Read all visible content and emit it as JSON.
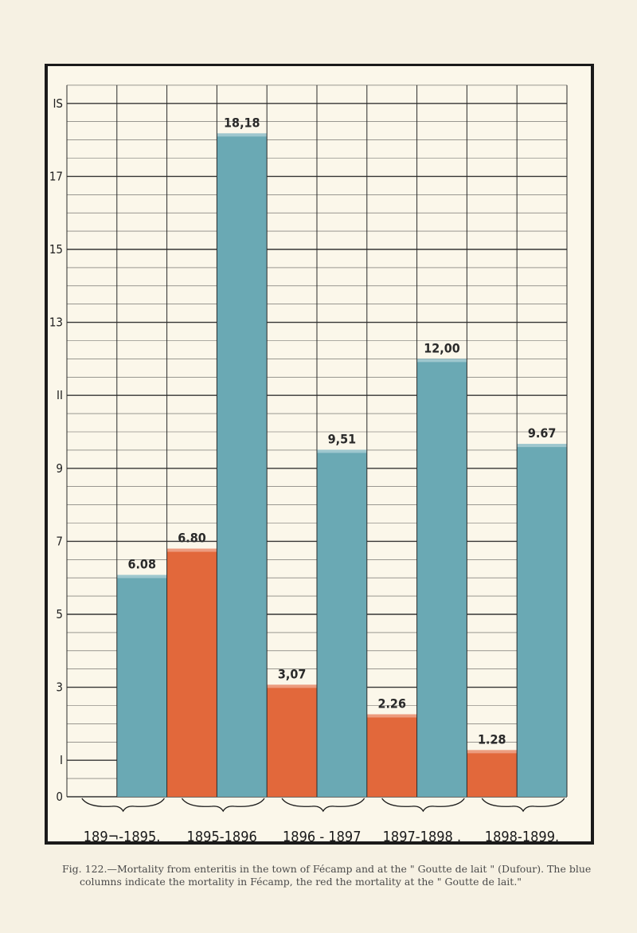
{
  "caption": {
    "line1": "Fig. 122.—Mortality from enteritis in the town of Fécamp and at the \" Goutte de lait \" (Dufour). The blue",
    "line2": "columns indicate the mortality in Fécamp, the red the mortality at the \" Goutte de lait.\""
  },
  "colors": {
    "fecamp": "#6aa9b4",
    "goutte_de_lait": "#e2683b",
    "grid": "#2b2b2b",
    "background": "#fbf7ea"
  },
  "chart_data": {
    "type": "bar",
    "title": "",
    "xlabel": "",
    "ylabel": "",
    "ylim": [
      0,
      19.5
    ],
    "ytick_labels": [
      "0",
      "I",
      "3",
      "5",
      "7",
      "9",
      "II",
      "13",
      "15",
      "17",
      "IS"
    ],
    "ytick_values": [
      0,
      1,
      3,
      5,
      7,
      9,
      11,
      13,
      15,
      17,
      19
    ],
    "grid": true,
    "legend": "none",
    "categories": [
      "1894-1895.",
      "1895-1896",
      "1896-1897",
      "1897-1898.",
      "1898-1899."
    ],
    "category_labels": [
      "189¬-1895.",
      "1895-1896",
      "1896 - 1897",
      "1897-1898 .",
      "1898-1899."
    ],
    "series": [
      {
        "key": "fecamp",
        "color": "#6aa9b4",
        "values": [
          6.08,
          18.18,
          9.51,
          12.0,
          9.67
        ],
        "labels": [
          "6.08",
          "18,18",
          "9,51",
          "12,00",
          "9.67"
        ]
      },
      {
        "key": "goutte_de_lait",
        "color": "#e2683b",
        "values": [
          6.8,
          3.07,
          2.26,
          1.28,
          null
        ],
        "labels": [
          "6.80",
          "3,07",
          "2.26",
          "1.28",
          ""
        ]
      }
    ]
  }
}
